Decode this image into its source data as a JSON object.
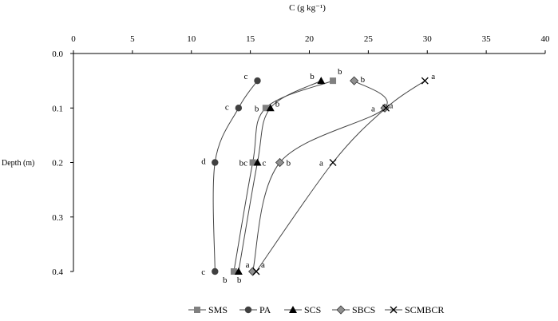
{
  "chart_data": {
    "type": "line",
    "xlabel": "C (g kg⁻¹)",
    "ylabel": "Depth (m)",
    "xlim": [
      0,
      40
    ],
    "ylim": [
      0.0,
      0.4
    ],
    "x_axis_position": "top",
    "y_axis_direction": "downward",
    "x_ticks": [
      "0",
      "5",
      "10",
      "15",
      "20",
      "25",
      "30",
      "35",
      "40"
    ],
    "y_ticks": [
      "0.0",
      "0.1",
      "0.2",
      "0.3",
      "0.4"
    ],
    "grid": false,
    "legend_position": "bottom",
    "series": [
      {
        "name": "SMS",
        "marker": "square",
        "color": "#808080",
        "points": [
          [
            22.0,
            0.05
          ],
          [
            16.3,
            0.1
          ],
          [
            15.2,
            0.2
          ],
          [
            13.6,
            0.4
          ]
        ],
        "labels": [
          "b",
          "b",
          "bc",
          "b"
        ]
      },
      {
        "name": "PA",
        "marker": "circle",
        "color": "#404040",
        "points": [
          [
            15.6,
            0.05
          ],
          [
            14.0,
            0.1
          ],
          [
            12.0,
            0.2
          ],
          [
            12.0,
            0.4
          ]
        ],
        "labels": [
          "c",
          "c",
          "d",
          "c"
        ]
      },
      {
        "name": "SCS",
        "marker": "triangle",
        "color": "#000000",
        "points": [
          [
            21.0,
            0.05
          ],
          [
            16.7,
            0.1
          ],
          [
            15.6,
            0.2
          ],
          [
            14.0,
            0.4
          ]
        ],
        "labels": [
          "b",
          "b",
          "c",
          "b"
        ]
      },
      {
        "name": "SBCS",
        "marker": "diamond",
        "color": "#909090",
        "points": [
          [
            23.8,
            0.05
          ],
          [
            26.4,
            0.1
          ],
          [
            17.5,
            0.2
          ],
          [
            15.2,
            0.4
          ]
        ],
        "labels": [
          "b",
          "a",
          "b",
          "a"
        ]
      },
      {
        "name": "SCMBCR",
        "marker": "x",
        "color": "#000000",
        "points": [
          [
            29.8,
            0.05
          ],
          [
            26.5,
            0.1
          ],
          [
            22.0,
            0.2
          ],
          [
            15.5,
            0.4
          ]
        ],
        "labels": [
          "a",
          "a",
          "a",
          "a"
        ]
      }
    ]
  }
}
